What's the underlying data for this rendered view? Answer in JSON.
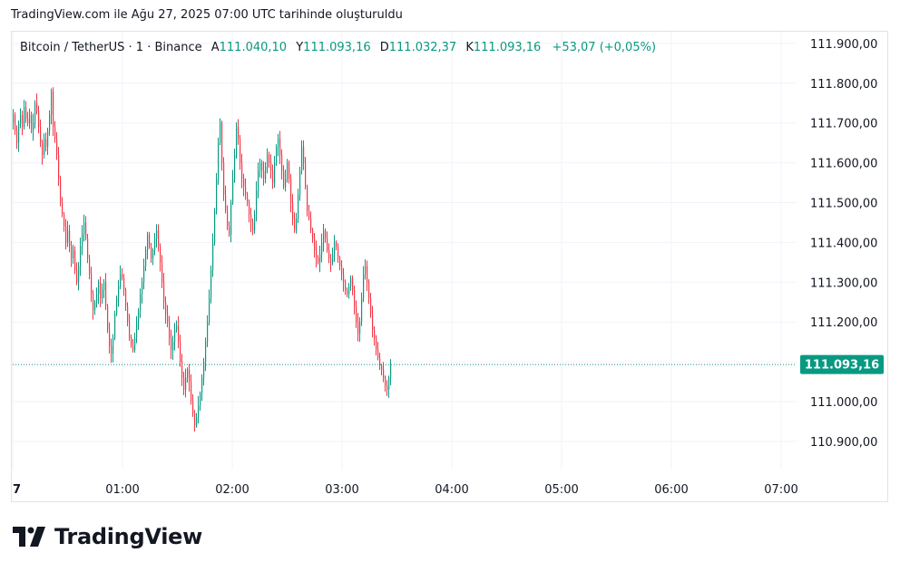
{
  "header": {
    "caption": "TradingView.com ile Ağu 27, 2025 07:00 UTC tarihinde oluşturuldu"
  },
  "legend": {
    "symbol": "Bitcoin / TetherUS · 1 · Binance",
    "open_label": "A",
    "open": "111.040,10",
    "high_label": "Y",
    "high": "111.093,16",
    "low_label": "D",
    "low": "111.032,37",
    "close_label": "K",
    "close": "111.093,16",
    "change": "+53,07 (+0,05%)"
  },
  "price_tag": "111.093,16",
  "footer": {
    "brand": "TradingView",
    "logo_icon": "tradingview-logo-icon"
  },
  "colors": {
    "up": "#089981",
    "down": "#f23645",
    "wick_up": "#089981",
    "wick_down": "#f23645"
  },
  "chart_data": {
    "type": "candlestick",
    "interval": "1 minute",
    "y_range": [
      110850,
      111950
    ],
    "y_ticks": [
      110900,
      111000,
      111100,
      111200,
      111300,
      111400,
      111500,
      111600,
      111700,
      111800,
      111900
    ],
    "y_tick_labels": [
      "110.900,00",
      "111.000,00",
      "111.100,00",
      "111.200,00",
      "111.300,00",
      "111.400,00",
      "111.500,00",
      "111.600,00",
      "111.700,00",
      "111.800,00",
      "111.900,00"
    ],
    "x_ticks": [
      "00:00",
      "01:00",
      "02:00",
      "03:00",
      "04:00",
      "05:00",
      "06:00",
      "07:00"
    ],
    "x_tick_labels": [
      "7",
      "01:00",
      "02:00",
      "03:00",
      "04:00",
      "05:00",
      "06:00",
      "07:00"
    ],
    "grid": true,
    "last_price": 111093.16,
    "closes": [
      111720,
      111680,
      111650,
      111700,
      111720,
      111690,
      111740,
      111710,
      111700,
      111720,
      111680,
      111700,
      111750,
      111730,
      111690,
      111650,
      111620,
      111660,
      111640,
      111680,
      111720,
      111780,
      111690,
      111660,
      111620,
      111560,
      111500,
      111470,
      111440,
      111400,
      111430,
      111390,
      111360,
      111380,
      111330,
      111300,
      111340,
      111390,
      111420,
      111450,
      111410,
      111360,
      111320,
      111270,
      111230,
      111250,
      111270,
      111300,
      111260,
      111280,
      111300,
      111240,
      111180,
      111140,
      111120,
      111160,
      111220,
      111260,
      111290,
      111320,
      111310,
      111280,
      111240,
      111200,
      111160,
      111140,
      111130,
      111160,
      111200,
      111230,
      111270,
      111300,
      111340,
      111380,
      111420,
      111390,
      111360,
      111380,
      111410,
      111430,
      111390,
      111350,
      111300,
      111250,
      111220,
      111200,
      111160,
      111130,
      111150,
      111180,
      111190,
      111150,
      111100,
      111060,
      111030,
      111060,
      111080,
      111050,
      111000,
      110970,
      110940,
      110960,
      110990,
      111020,
      111060,
      111100,
      111150,
      111200,
      111260,
      111330,
      111400,
      111480,
      111560,
      111650,
      111700,
      111600,
      111520,
      111480,
      111440,
      111420,
      111500,
      111560,
      111620,
      111690,
      111660,
      111600,
      111560,
      111540,
      111520,
      111500,
      111470,
      111450,
      111430,
      111470,
      111530,
      111580,
      111600,
      111580,
      111560,
      111590,
      111620,
      111600,
      111580,
      111550,
      111600,
      111640,
      111660,
      111620,
      111580,
      111540,
      111560,
      111600,
      111560,
      111500,
      111460,
      111430,
      111460,
      111520,
      111580,
      111640,
      111600,
      111540,
      111480,
      111460,
      111430,
      111410,
      111380,
      111360,
      111350,
      111370,
      111400,
      111430,
      111410,
      111380,
      111360,
      111350,
      111370,
      111400,
      111390,
      111360,
      111340,
      111320,
      111300,
      111280,
      111270,
      111290,
      111310,
      111280,
      111240,
      111200,
      111170,
      111200,
      111260,
      111320,
      111340,
      111300,
      111260,
      111220,
      111180,
      111160,
      111130,
      111110,
      111090,
      111080,
      111060,
      111040,
      111030,
      111060,
      111093
    ]
  }
}
